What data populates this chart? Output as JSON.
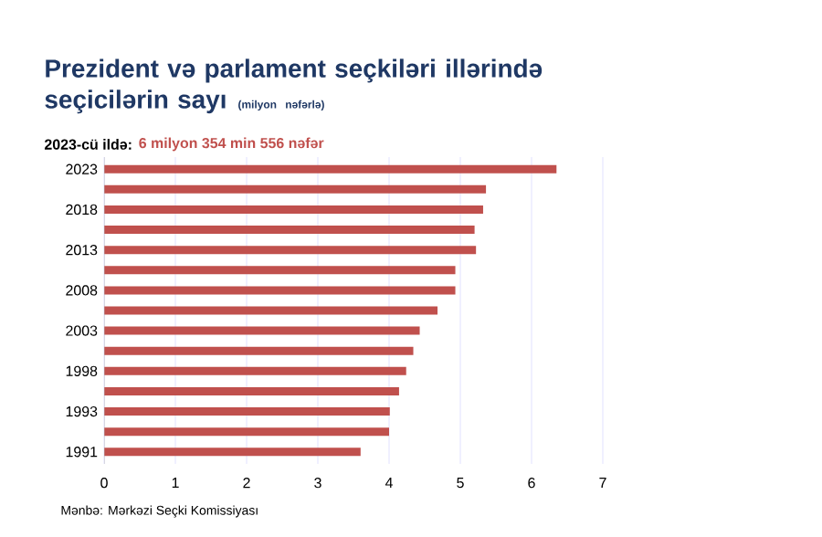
{
  "chart_data": {
    "type": "bar",
    "orientation": "horizontal",
    "title": "Prezident və parlament seçkiləri illərində seçicilərin sayı",
    "subtitle": "(milyon nəfərlə)",
    "annotations": [
      "2023-cü ildə:",
      "6 milyon 354 min 556 nəfər",
      "Mənbə: Mərkəzi Seçki Komissiyası"
    ],
    "categories": [
      "2023",
      null,
      "2018",
      null,
      "2013",
      null,
      "2008",
      null,
      "2003",
      null,
      "1998",
      null,
      "1993",
      null,
      "1991"
    ],
    "values": [
      6.35,
      5.36,
      5.32,
      5.2,
      5.22,
      4.93,
      4.93,
      4.68,
      4.43,
      4.34,
      4.24,
      4.14,
      4.01,
      4.0,
      3.6
    ],
    "color": "#c0504d",
    "xlim": [
      0,
      7
    ],
    "xticks": [
      0,
      1,
      2,
      3,
      4,
      5,
      6,
      7
    ],
    "grid": "x"
  }
}
